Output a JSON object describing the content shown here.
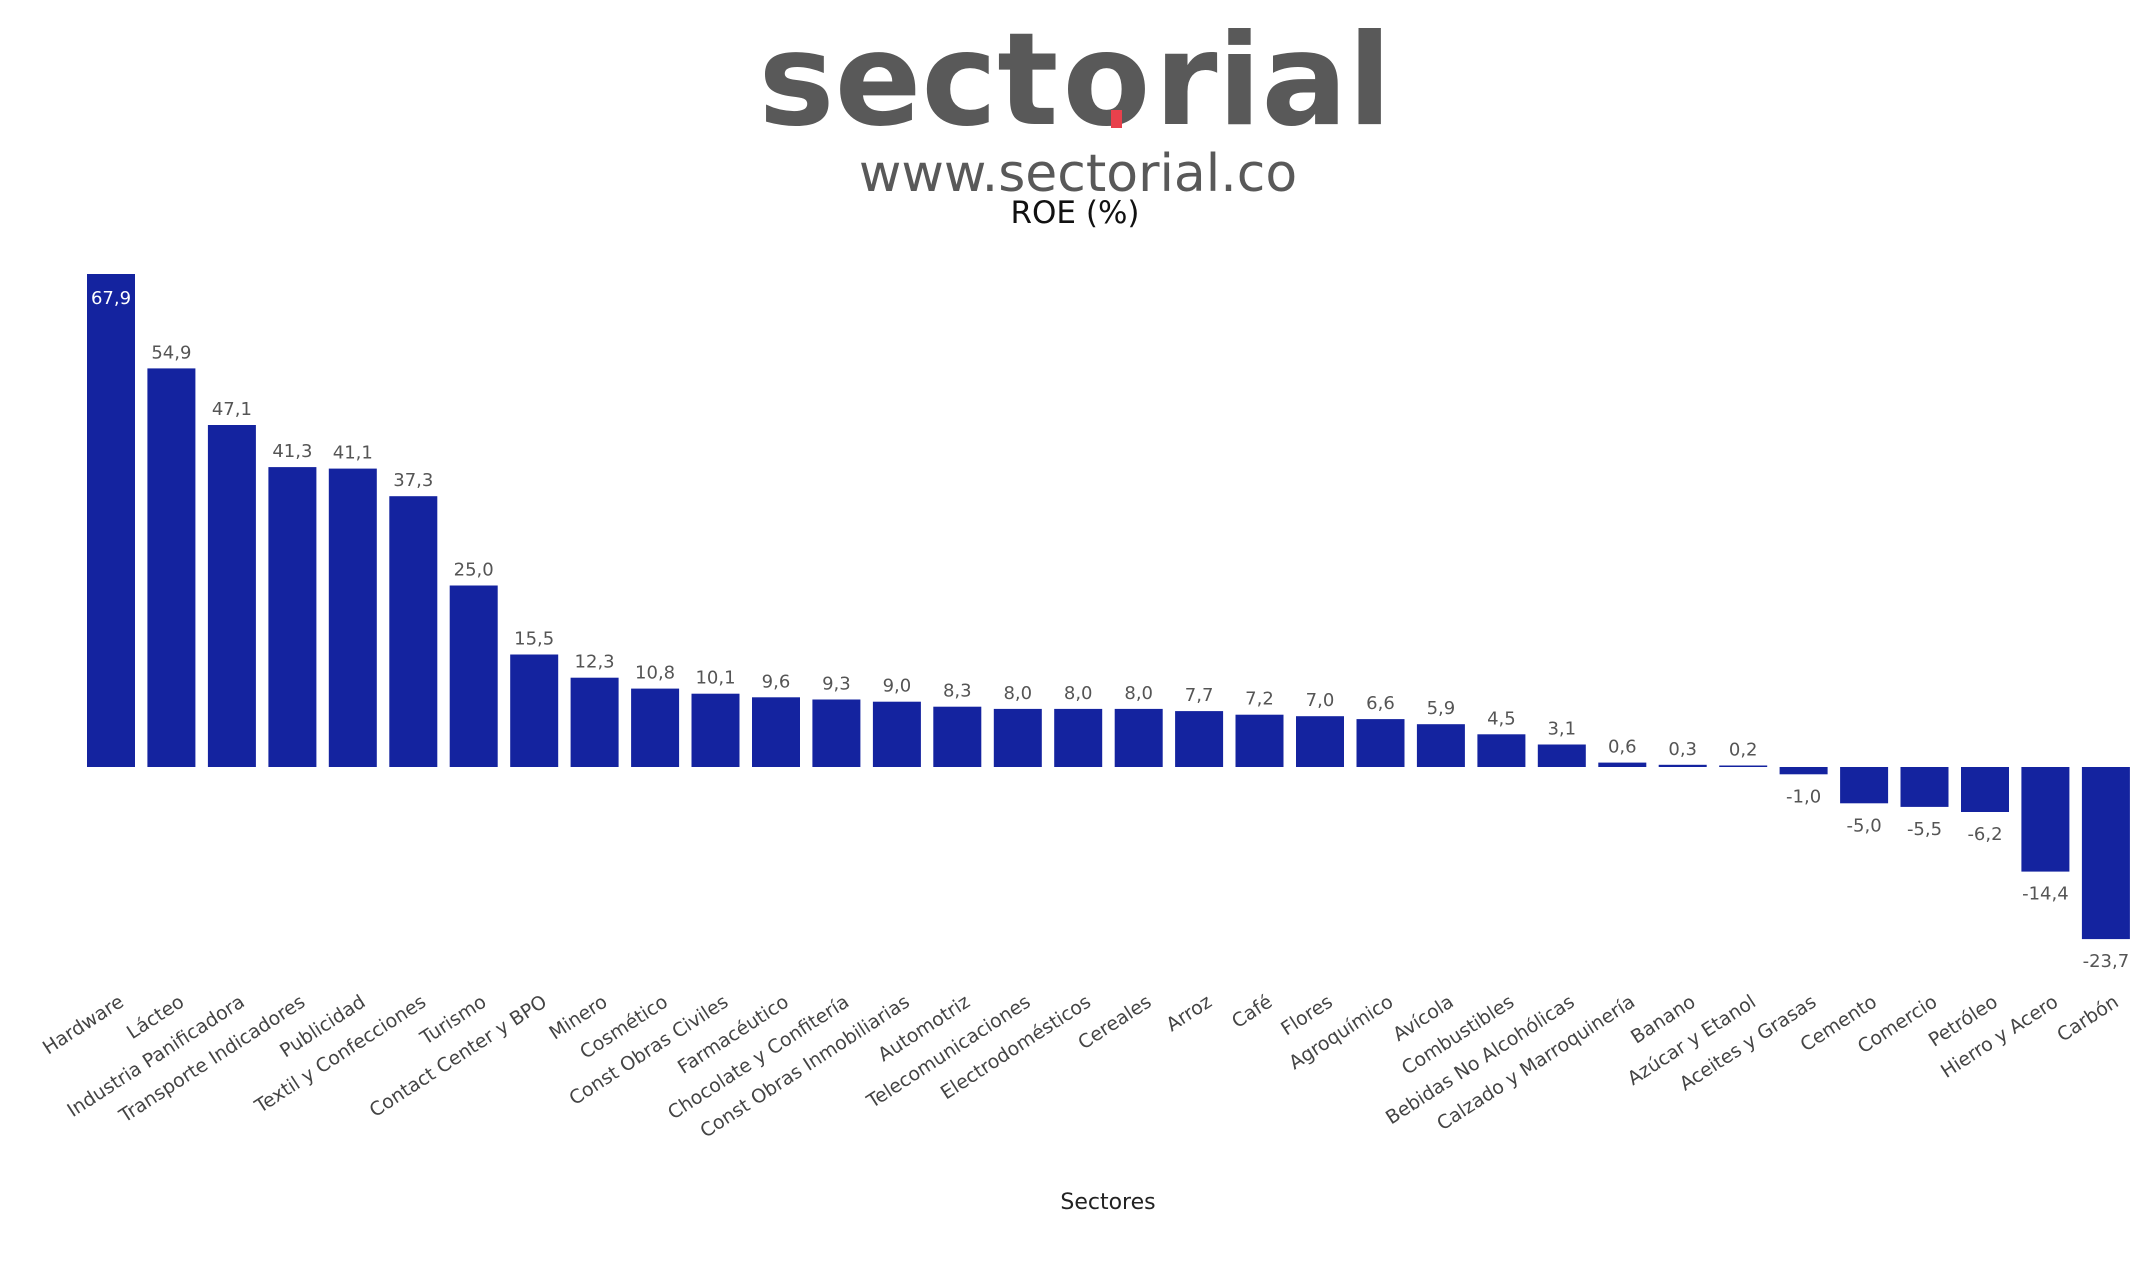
{
  "brand": {
    "name_part1": "sect",
    "name_part2": "rial",
    "url": "www.sectorial.co",
    "text_color": "#595959",
    "accent_color": "#e8414c"
  },
  "chart_data": {
    "type": "bar",
    "title": "ROE (%)",
    "xlabel": "Sectores",
    "ylabel": "",
    "ylim": [
      -23.7,
      67.9
    ],
    "grid": false,
    "legend": "none",
    "bar_color": "#14239f",
    "categories": [
      "Hardware",
      "Lácteo",
      "Industria Panificadora",
      "Transporte Indicadores",
      "Publicidad",
      "Textil y Confecciones",
      "Turismo",
      "Contact Center y BPO",
      "Minero",
      "Cosmético",
      "Const Obras Civiles",
      "Farmacéutico",
      "Chocolate y Confitería",
      "Const Obras Inmobiliarias",
      "Automotriz",
      "Telecomunicaciones",
      "Electrodomésticos",
      "Cereales",
      "Arroz",
      "Café",
      "Flores",
      "Agroquímico",
      "Avícola",
      "Combustibles",
      "Bebidas No Alcohólicas",
      "Calzado y Marroquinería",
      "Banano",
      "Azúcar y Etanol",
      "Aceites y Grasas",
      "Cemento",
      "Comercio",
      "Petróleo",
      "Hierro y Acero",
      "Carbón"
    ],
    "values": [
      67.9,
      54.9,
      47.1,
      41.3,
      41.1,
      37.3,
      25.0,
      15.5,
      12.3,
      10.8,
      10.1,
      9.6,
      9.3,
      9.0,
      8.3,
      8.0,
      8.0,
      8.0,
      7.7,
      7.2,
      7.0,
      6.6,
      5.9,
      4.5,
      3.1,
      0.6,
      0.3,
      0.2,
      -1.0,
      -5.0,
      -5.5,
      -6.2,
      -14.4,
      -23.7
    ],
    "value_labels": [
      "67,9",
      "54,9",
      "47,1",
      "41,3",
      "41,1",
      "37,3",
      "25,0",
      "15,5",
      "12,3",
      "10,8",
      "10,1",
      "9,6",
      "9,3",
      "9,0",
      "8,3",
      "8,0",
      "8,0",
      "8,0",
      "7,7",
      "7,2",
      "7,0",
      "6,6",
      "5,9",
      "4,5",
      "3,1",
      "0,6",
      "0,3",
      "0,2",
      "-1,0",
      "-5,0",
      "-5,5",
      "-6,2",
      "-14,4",
      "-23,7"
    ]
  }
}
